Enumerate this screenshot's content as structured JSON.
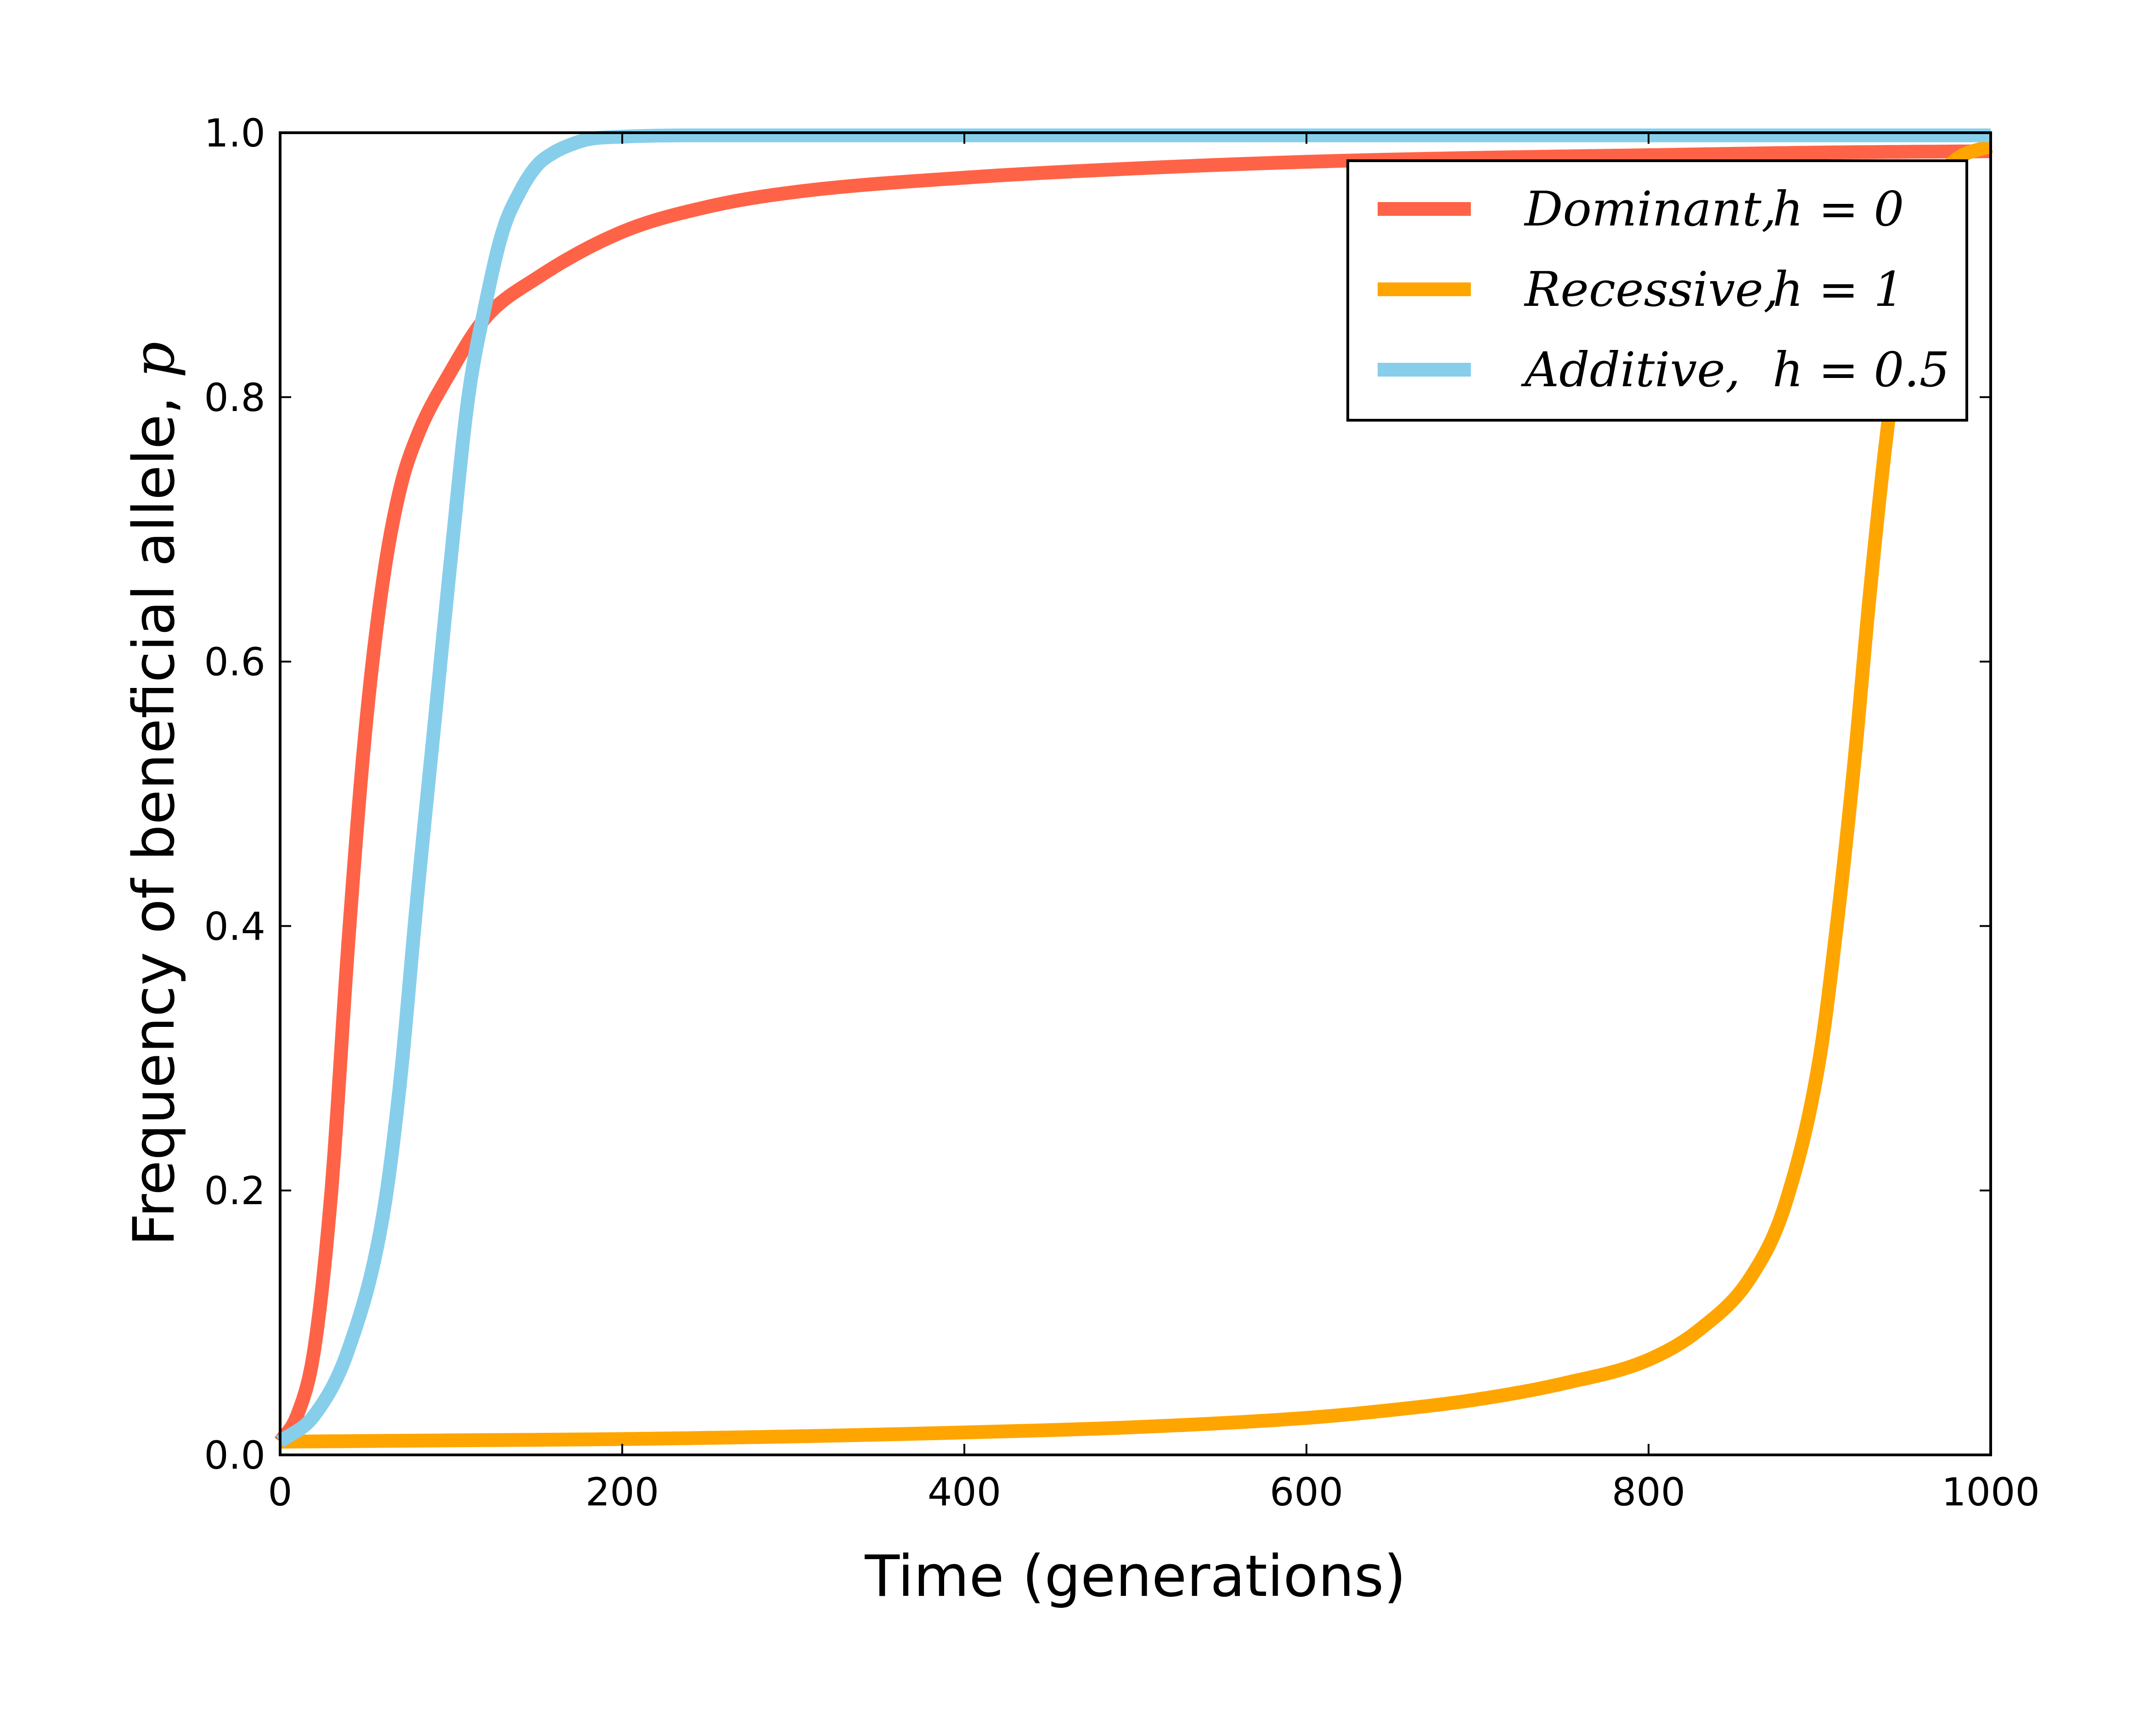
{
  "chart_data": {
    "type": "line",
    "title": "",
    "xlabel": "Time (generations)",
    "ylabel": "Frequency of beneficial allele, ",
    "ylabel_symbol": "p",
    "xlim": [
      0,
      1000
    ],
    "ylim": [
      0.0,
      1.0
    ],
    "xticks": [
      "0",
      "200",
      "400",
      "600",
      "800",
      "1000"
    ],
    "yticks": [
      "0.0",
      "0.2",
      "0.4",
      "0.6",
      "0.8",
      "1.0"
    ],
    "grid": false,
    "legend_position": "top-right",
    "series": [
      {
        "name": "Dominant, h = 0",
        "legend_word": "Dominant,",
        "legend_param": "h = 0",
        "color": "#ff6347",
        "x": [
          0,
          10,
          20,
          30,
          40,
          50,
          60,
          70,
          80,
          100,
          120,
          150,
          200,
          250,
          300,
          400,
          500,
          600,
          700,
          800,
          900,
          1000
        ],
        "y": [
          0.01,
          0.03,
          0.08,
          0.2,
          0.39,
          0.55,
          0.66,
          0.73,
          0.77,
          0.82,
          0.86,
          0.89,
          0.925,
          0.944,
          0.955,
          0.966,
          0.973,
          0.978,
          0.981,
          0.983,
          0.985,
          0.986
        ]
      },
      {
        "name": "Recessive, h = 1",
        "legend_word": "Recessive,",
        "legend_param": "h = 1",
        "color": "#ffa500",
        "x": [
          0,
          100,
          200,
          300,
          400,
          500,
          600,
          650,
          700,
          750,
          800,
          830,
          860,
          880,
          900,
          910,
          920,
          930,
          940,
          950,
          960,
          970,
          980,
          1000
        ],
        "y": [
          0.01,
          0.011,
          0.012,
          0.014,
          0.017,
          0.021,
          0.028,
          0.034,
          0.042,
          0.054,
          0.072,
          0.095,
          0.135,
          0.19,
          0.3,
          0.4,
          0.52,
          0.66,
          0.78,
          0.87,
          0.93,
          0.965,
          0.98,
          0.99
        ]
      },
      {
        "name": "Additive, h = 0.5",
        "legend_word": "Additive,",
        "legend_param": "h = 0.5",
        "color": "#87ceeb",
        "x": [
          0,
          20,
          40,
          60,
          70,
          80,
          90,
          100,
          110,
          120,
          130,
          140,
          150,
          160,
          170,
          180,
          200,
          250,
          300,
          400,
          600,
          800,
          1000
        ],
        "y": [
          0.01,
          0.03,
          0.08,
          0.18,
          0.28,
          0.42,
          0.55,
          0.68,
          0.8,
          0.87,
          0.925,
          0.955,
          0.975,
          0.985,
          0.991,
          0.995,
          0.997,
          0.998,
          0.998,
          0.998,
          0.998,
          0.998,
          0.998
        ]
      }
    ]
  }
}
